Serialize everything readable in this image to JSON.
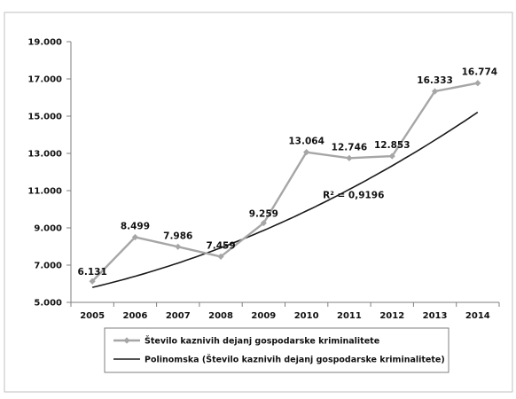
{
  "chart_data": {
    "type": "line",
    "title": "",
    "xlabel": "",
    "ylabel": "",
    "categories": [
      "2005",
      "2006",
      "2007",
      "2008",
      "2009",
      "2010",
      "2011",
      "2012",
      "2013",
      "2014"
    ],
    "ylim": [
      5000,
      19000
    ],
    "yticks": [
      5000,
      7000,
      9000,
      11000,
      13000,
      15000,
      17000,
      19000
    ],
    "ytick_labels": [
      "5.000",
      "7.000",
      "9.000",
      "11.000",
      "13.000",
      "15.000",
      "17.000",
      "19.000"
    ],
    "series": [
      {
        "name": "Število kaznivih dejanj gospodarske kriminalitete",
        "values": [
          6131,
          8499,
          7986,
          7459,
          9259,
          13064,
          12746,
          12853,
          16333,
          16774
        ],
        "labels": [
          "6.131",
          "8.499",
          "7.986",
          "7.459",
          "9.259",
          "13.064",
          "12.746",
          "12.853",
          "16.333",
          "16.774"
        ],
        "color": "#a6a6a6",
        "marker": "diamond"
      },
      {
        "name": "Polinomska (Število kaznivih dejanj gospodarske kriminalitete)",
        "type": "trendline",
        "color": "#1a1a1a",
        "coefficients": [
          5804.7,
          540.1,
          56.1
        ]
      }
    ],
    "annotations": [
      {
        "text": "R² = 0,9196"
      }
    ],
    "grid": false,
    "legend": "bottom"
  }
}
